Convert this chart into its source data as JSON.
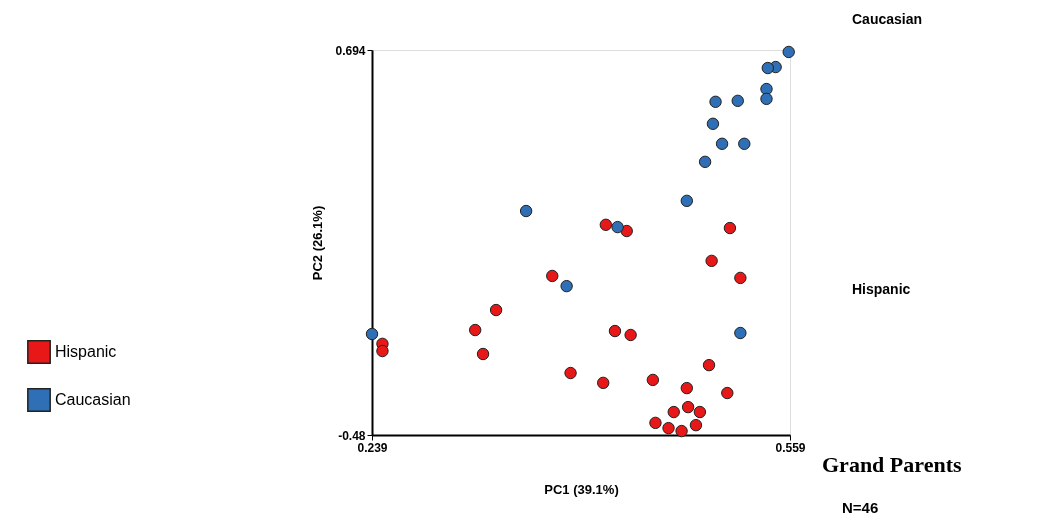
{
  "chart_data": {
    "type": "scatter",
    "xlabel": "PC1 (39.1%)",
    "ylabel": "PC2 (26.1%)",
    "xlim": [
      0.239,
      0.559
    ],
    "xticks": [
      0.239,
      0.559
    ],
    "ylim": [
      -0.48,
      0.694
    ],
    "yticks": [
      -0.48,
      0.694
    ],
    "legend": "left",
    "marker": "circle",
    "annotations": [
      "Caucasian",
      "Hispanic",
      "Grand Parents",
      "N=46"
    ],
    "series": [
      {
        "name": "Hispanic",
        "color": "#e81818",
        "x": [
          0.418,
          0.434,
          0.513,
          0.499,
          0.521,
          0.377,
          0.334,
          0.318,
          0.425,
          0.437,
          0.324,
          0.247,
          0.247,
          0.391,
          0.416,
          0.454,
          0.497,
          0.48,
          0.511,
          0.47,
          0.481,
          0.49,
          0.456,
          0.466,
          0.476,
          0.487
        ],
        "values": [
          0.161,
          0.142,
          0.151,
          0.051,
          -0.001,
          0.005,
          -0.099,
          -0.16,
          -0.163,
          -0.175,
          -0.233,
          -0.202,
          -0.224,
          -0.291,
          -0.321,
          -0.312,
          -0.267,
          -0.337,
          -0.352,
          -0.41,
          -0.395,
          -0.41,
          -0.443,
          -0.459,
          -0.468,
          -0.45
        ]
      },
      {
        "name": "Caucasian",
        "color": "#2f6fb5",
        "x": [
          0.558,
          0.548,
          0.542,
          0.541,
          0.541,
          0.519,
          0.502,
          0.5,
          0.507,
          0.524,
          0.494,
          0.48,
          0.357,
          0.427,
          0.388,
          0.239,
          0.521
        ],
        "values": [
          0.688,
          0.642,
          0.639,
          0.575,
          0.545,
          0.539,
          0.536,
          0.469,
          0.408,
          0.408,
          0.353,
          0.234,
          0.203,
          0.154,
          -0.026,
          -0.172,
          -0.169
        ]
      }
    ]
  }
}
